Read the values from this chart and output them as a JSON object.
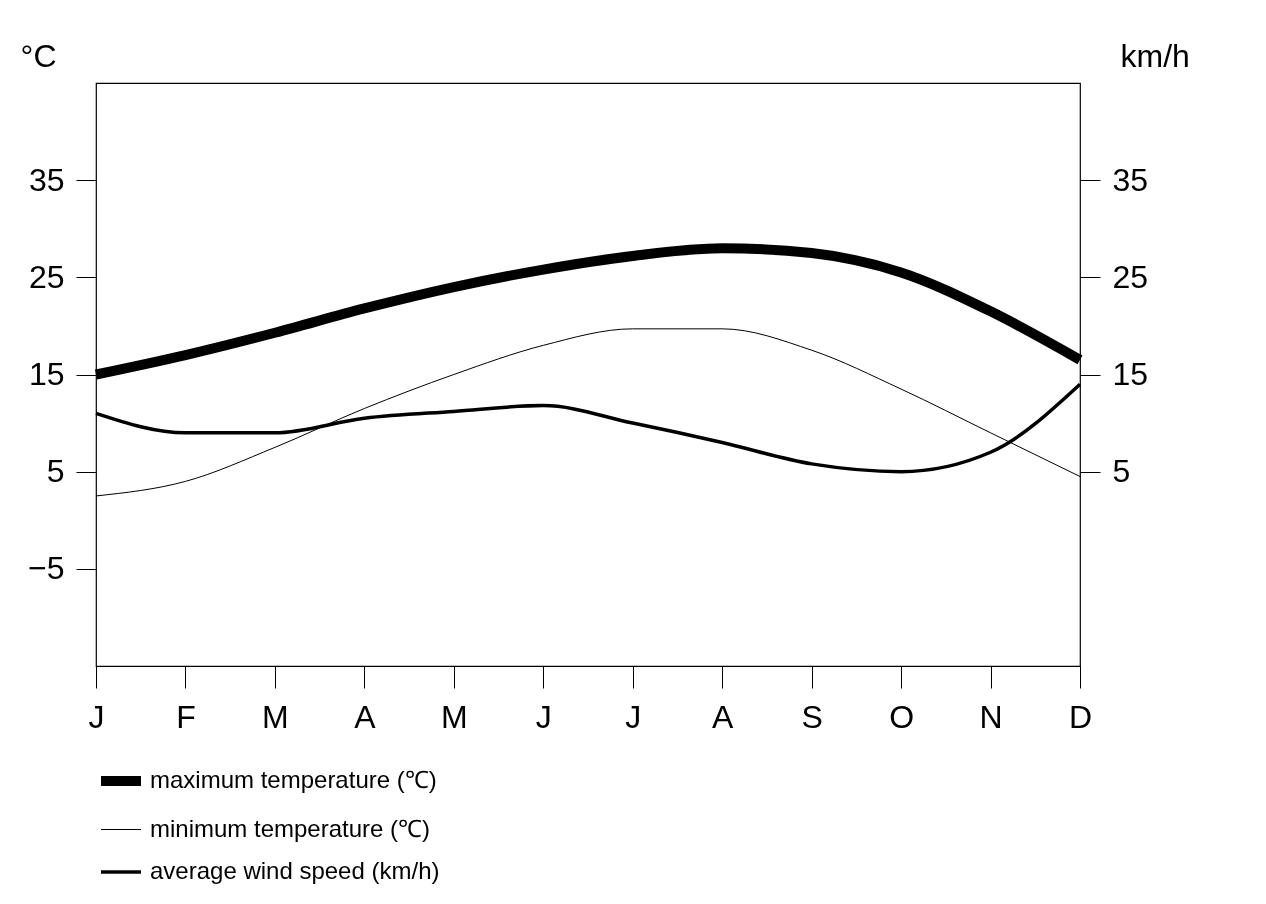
{
  "chart_data": {
    "type": "line",
    "categories": [
      "J",
      "F",
      "M",
      "A",
      "M",
      "J",
      "J",
      "A",
      "S",
      "O",
      "N",
      "D"
    ],
    "ylabel": "°C",
    "y2label": "km/h",
    "ylim": [
      -15,
      45
    ],
    "yticks": [
      -5,
      5,
      15,
      25,
      35
    ],
    "y2lim": [
      -15,
      45
    ],
    "y2ticks": [
      5,
      15,
      25,
      35
    ],
    "grid": false,
    "legend": "bottom left",
    "marker": "none",
    "line_style": "solid",
    "series": [
      {
        "name": "maximum temperature (℃)",
        "color": "#000000",
        "values": [
          15,
          17,
          19.3,
          21.8,
          24,
          25.8,
          27.2,
          28,
          27.5,
          25.5,
          21.5,
          16.5
        ]
      },
      {
        "name": "minimum temperature (℃)",
        "color": "#000000",
        "values": [
          2.5,
          4,
          7.5,
          11.5,
          15,
          18,
          19.7,
          19.7,
          17.5,
          13.5,
          9,
          4.5
        ]
      },
      {
        "name": "average wind speed (km/h)",
        "color": "#000000",
        "axis": "y2",
        "values": [
          11,
          9,
          9,
          10.5,
          11.2,
          11.8,
          10,
          8,
          5.8,
          5,
          7,
          14
        ]
      }
    ]
  }
}
